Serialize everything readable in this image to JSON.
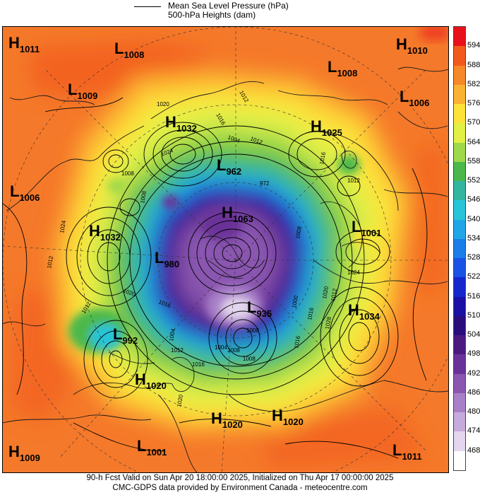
{
  "legend": {
    "line_label": "Mean Sea Level Pressure (hPa)",
    "fill_label": "500-hPa Heights (dam)"
  },
  "colorbar": {
    "levels": [
      {
        "label": "594",
        "color": "#e8101a"
      },
      {
        "label": "588",
        "color": "#f25a1c"
      },
      {
        "label": "582",
        "color": "#f6882a"
      },
      {
        "label": "576",
        "color": "#fbb232"
      },
      {
        "label": "570",
        "color": "#fde23a"
      },
      {
        "label": "564",
        "color": "#e2f046"
      },
      {
        "label": "558",
        "color": "#9fd84a"
      },
      {
        "label": "552",
        "color": "#4cb84c"
      },
      {
        "label": "546",
        "color": "#32b6a0"
      },
      {
        "label": "540",
        "color": "#28c4d8"
      },
      {
        "label": "534",
        "color": "#20a6e6"
      },
      {
        "label": "528",
        "color": "#1a7ee8"
      },
      {
        "label": "522",
        "color": "#1a52e4"
      },
      {
        "label": "516",
        "color": "#1426cc"
      },
      {
        "label": "510",
        "color": "#1a10a4"
      },
      {
        "label": "504",
        "color": "#2a0c7c"
      },
      {
        "label": "498",
        "color": "#4a1a80"
      },
      {
        "label": "492",
        "color": "#6a3298"
      },
      {
        "label": "486",
        "color": "#8a56b0"
      },
      {
        "label": "480",
        "color": "#a880c8"
      },
      {
        "label": "474",
        "color": "#c6aadc"
      },
      {
        "label": "468",
        "color": "#e4d6ee"
      },
      {
        "label": "",
        "color": "#ffffff"
      }
    ]
  },
  "pressure_centers": [
    {
      "type": "H",
      "value": "1011"
    },
    {
      "type": "L",
      "value": "1008"
    },
    {
      "type": "H",
      "value": "1010"
    },
    {
      "type": "L",
      "value": "1009"
    },
    {
      "type": "L",
      "value": "1008"
    },
    {
      "type": "L",
      "value": "1006"
    },
    {
      "type": "H",
      "value": "1032"
    },
    {
      "type": "H",
      "value": "1025"
    },
    {
      "type": "L",
      "value": "962"
    },
    {
      "type": "L",
      "value": "1006"
    },
    {
      "type": "H",
      "value": "1063"
    },
    {
      "type": "H",
      "value": "1032"
    },
    {
      "type": "L",
      "value": "1001"
    },
    {
      "type": "L",
      "value": "980"
    },
    {
      "type": "L",
      "value": "935"
    },
    {
      "type": "H",
      "value": "1034"
    },
    {
      "type": "L",
      "value": "992"
    },
    {
      "type": "H",
      "value": "1020"
    },
    {
      "type": "H",
      "value": "1020"
    },
    {
      "type": "H",
      "value": "1020"
    },
    {
      "type": "H",
      "value": "1009"
    },
    {
      "type": "L",
      "value": "1001"
    },
    {
      "type": "L",
      "value": "1011"
    }
  ],
  "isobar_labels": [
    "1020",
    "1016",
    "1012",
    "1004",
    "1012",
    "1024",
    "1008",
    "1016",
    "1012",
    "1024",
    "972",
    "1008",
    "1024",
    "1012",
    "1000",
    "1020",
    "1016",
    "1028",
    "1012",
    "1008",
    "1020",
    "1016",
    "1012",
    "1004",
    "1008",
    "1016",
    "1012",
    "1020",
    "1016",
    "1008",
    "1004",
    "1008"
  ],
  "footer": {
    "line1": "90-h Fcst Valid on Sun Apr 20 18:00:00 2025, Initialized on Thu Apr 17 00:00:00 2025",
    "line2": "CMC-GDPS data provided by Environment Canada - meteocentre.com"
  }
}
